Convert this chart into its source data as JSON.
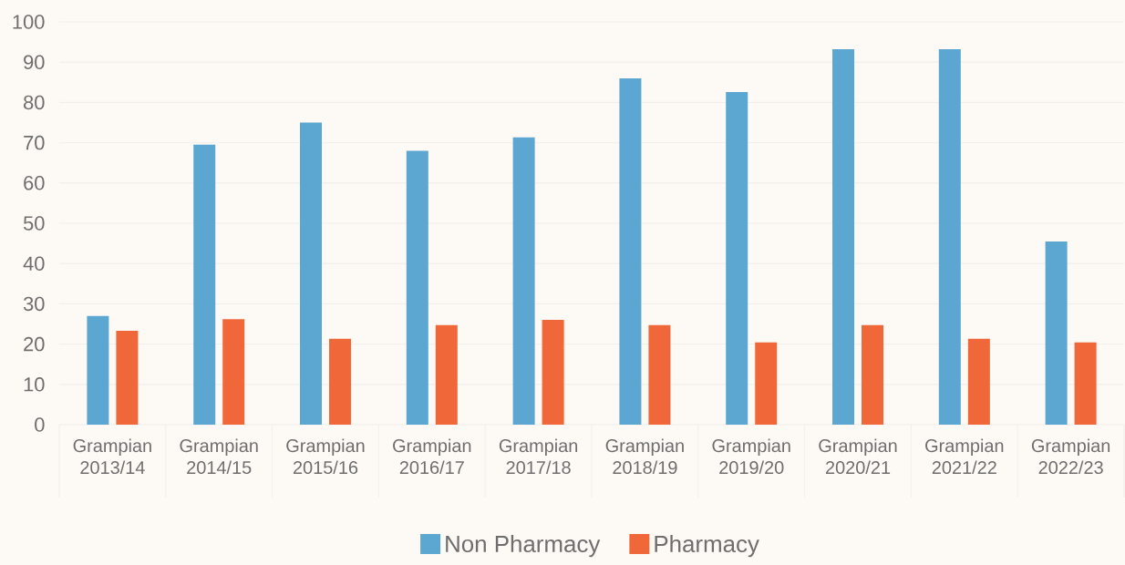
{
  "chart_data": {
    "type": "bar",
    "categories": [
      "Grampian 2013/14",
      "Grampian 2014/15",
      "Grampian 2015/16",
      "Grampian 2016/17",
      "Grampian 2017/18",
      "Grampian 2018/19",
      "Grampian 2019/20",
      "Grampian 2020/21",
      "Grampian 2021/22",
      "Grampian 2022/23"
    ],
    "series": [
      {
        "name": "Non Pharmacy",
        "color": "#5ba7d2",
        "values": [
          27,
          69.5,
          75,
          68,
          71.3,
          86,
          82.6,
          93.2,
          93.2,
          45.5
        ]
      },
      {
        "name": "Pharmacy",
        "color": "#f0683a",
        "values": [
          23.3,
          26.2,
          21.3,
          24.7,
          26,
          24.7,
          20.4,
          24.7,
          21.3,
          20.4
        ]
      }
    ],
    "ylim": [
      0,
      100
    ],
    "yticks": [
      0,
      10,
      20,
      30,
      40,
      50,
      60,
      70,
      80,
      90,
      100
    ],
    "grid": "y",
    "legend": "bottom"
  }
}
